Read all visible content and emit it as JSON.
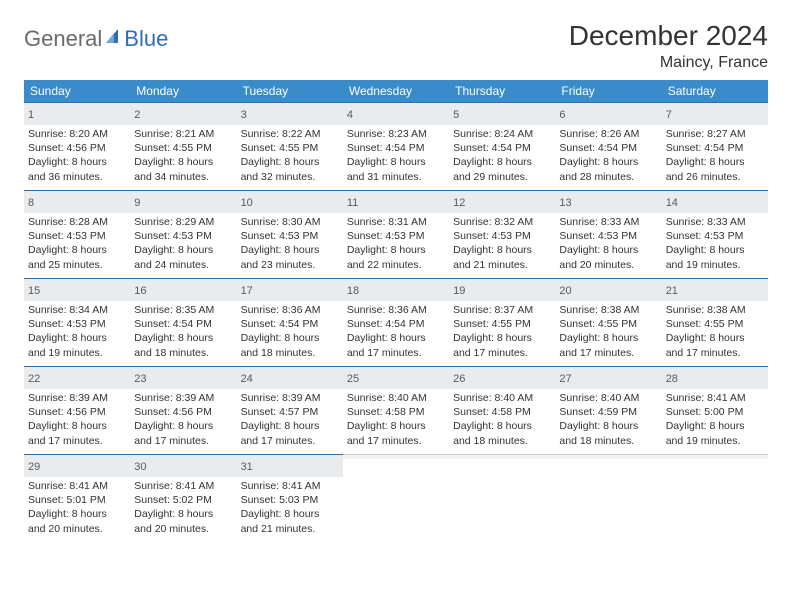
{
  "brand": {
    "part1": "General",
    "part2": "Blue"
  },
  "title": "December 2024",
  "location": "Maincy, France",
  "colors": {
    "header_bg": "#3a8bc9",
    "header_text": "#ffffff",
    "daynum_bg": "#e8ecef",
    "daynum_border": "#2f6fb0",
    "body_text": "#333333",
    "logo_gray": "#6b6b6b",
    "logo_blue": "#2f6fb0"
  },
  "dayNames": [
    "Sunday",
    "Monday",
    "Tuesday",
    "Wednesday",
    "Thursday",
    "Friday",
    "Saturday"
  ],
  "weeks": [
    [
      {
        "d": 1,
        "sr": "8:20 AM",
        "ss": "4:56 PM",
        "dl": "8 hours and 36 minutes."
      },
      {
        "d": 2,
        "sr": "8:21 AM",
        "ss": "4:55 PM",
        "dl": "8 hours and 34 minutes."
      },
      {
        "d": 3,
        "sr": "8:22 AM",
        "ss": "4:55 PM",
        "dl": "8 hours and 32 minutes."
      },
      {
        "d": 4,
        "sr": "8:23 AM",
        "ss": "4:54 PM",
        "dl": "8 hours and 31 minutes."
      },
      {
        "d": 5,
        "sr": "8:24 AM",
        "ss": "4:54 PM",
        "dl": "8 hours and 29 minutes."
      },
      {
        "d": 6,
        "sr": "8:26 AM",
        "ss": "4:54 PM",
        "dl": "8 hours and 28 minutes."
      },
      {
        "d": 7,
        "sr": "8:27 AM",
        "ss": "4:54 PM",
        "dl": "8 hours and 26 minutes."
      }
    ],
    [
      {
        "d": 8,
        "sr": "8:28 AM",
        "ss": "4:53 PM",
        "dl": "8 hours and 25 minutes."
      },
      {
        "d": 9,
        "sr": "8:29 AM",
        "ss": "4:53 PM",
        "dl": "8 hours and 24 minutes."
      },
      {
        "d": 10,
        "sr": "8:30 AM",
        "ss": "4:53 PM",
        "dl": "8 hours and 23 minutes."
      },
      {
        "d": 11,
        "sr": "8:31 AM",
        "ss": "4:53 PM",
        "dl": "8 hours and 22 minutes."
      },
      {
        "d": 12,
        "sr": "8:32 AM",
        "ss": "4:53 PM",
        "dl": "8 hours and 21 minutes."
      },
      {
        "d": 13,
        "sr": "8:33 AM",
        "ss": "4:53 PM",
        "dl": "8 hours and 20 minutes."
      },
      {
        "d": 14,
        "sr": "8:33 AM",
        "ss": "4:53 PM",
        "dl": "8 hours and 19 minutes."
      }
    ],
    [
      {
        "d": 15,
        "sr": "8:34 AM",
        "ss": "4:53 PM",
        "dl": "8 hours and 19 minutes."
      },
      {
        "d": 16,
        "sr": "8:35 AM",
        "ss": "4:54 PM",
        "dl": "8 hours and 18 minutes."
      },
      {
        "d": 17,
        "sr": "8:36 AM",
        "ss": "4:54 PM",
        "dl": "8 hours and 18 minutes."
      },
      {
        "d": 18,
        "sr": "8:36 AM",
        "ss": "4:54 PM",
        "dl": "8 hours and 17 minutes."
      },
      {
        "d": 19,
        "sr": "8:37 AM",
        "ss": "4:55 PM",
        "dl": "8 hours and 17 minutes."
      },
      {
        "d": 20,
        "sr": "8:38 AM",
        "ss": "4:55 PM",
        "dl": "8 hours and 17 minutes."
      },
      {
        "d": 21,
        "sr": "8:38 AM",
        "ss": "4:55 PM",
        "dl": "8 hours and 17 minutes."
      }
    ],
    [
      {
        "d": 22,
        "sr": "8:39 AM",
        "ss": "4:56 PM",
        "dl": "8 hours and 17 minutes."
      },
      {
        "d": 23,
        "sr": "8:39 AM",
        "ss": "4:56 PM",
        "dl": "8 hours and 17 minutes."
      },
      {
        "d": 24,
        "sr": "8:39 AM",
        "ss": "4:57 PM",
        "dl": "8 hours and 17 minutes."
      },
      {
        "d": 25,
        "sr": "8:40 AM",
        "ss": "4:58 PM",
        "dl": "8 hours and 17 minutes."
      },
      {
        "d": 26,
        "sr": "8:40 AM",
        "ss": "4:58 PM",
        "dl": "8 hours and 18 minutes."
      },
      {
        "d": 27,
        "sr": "8:40 AM",
        "ss": "4:59 PM",
        "dl": "8 hours and 18 minutes."
      },
      {
        "d": 28,
        "sr": "8:41 AM",
        "ss": "5:00 PM",
        "dl": "8 hours and 19 minutes."
      }
    ],
    [
      {
        "d": 29,
        "sr": "8:41 AM",
        "ss": "5:01 PM",
        "dl": "8 hours and 20 minutes."
      },
      {
        "d": 30,
        "sr": "8:41 AM",
        "ss": "5:02 PM",
        "dl": "8 hours and 20 minutes."
      },
      {
        "d": 31,
        "sr": "8:41 AM",
        "ss": "5:03 PM",
        "dl": "8 hours and 21 minutes."
      },
      null,
      null,
      null,
      null
    ]
  ],
  "labels": {
    "sunrise": "Sunrise:",
    "sunset": "Sunset:",
    "daylight": "Daylight:"
  }
}
